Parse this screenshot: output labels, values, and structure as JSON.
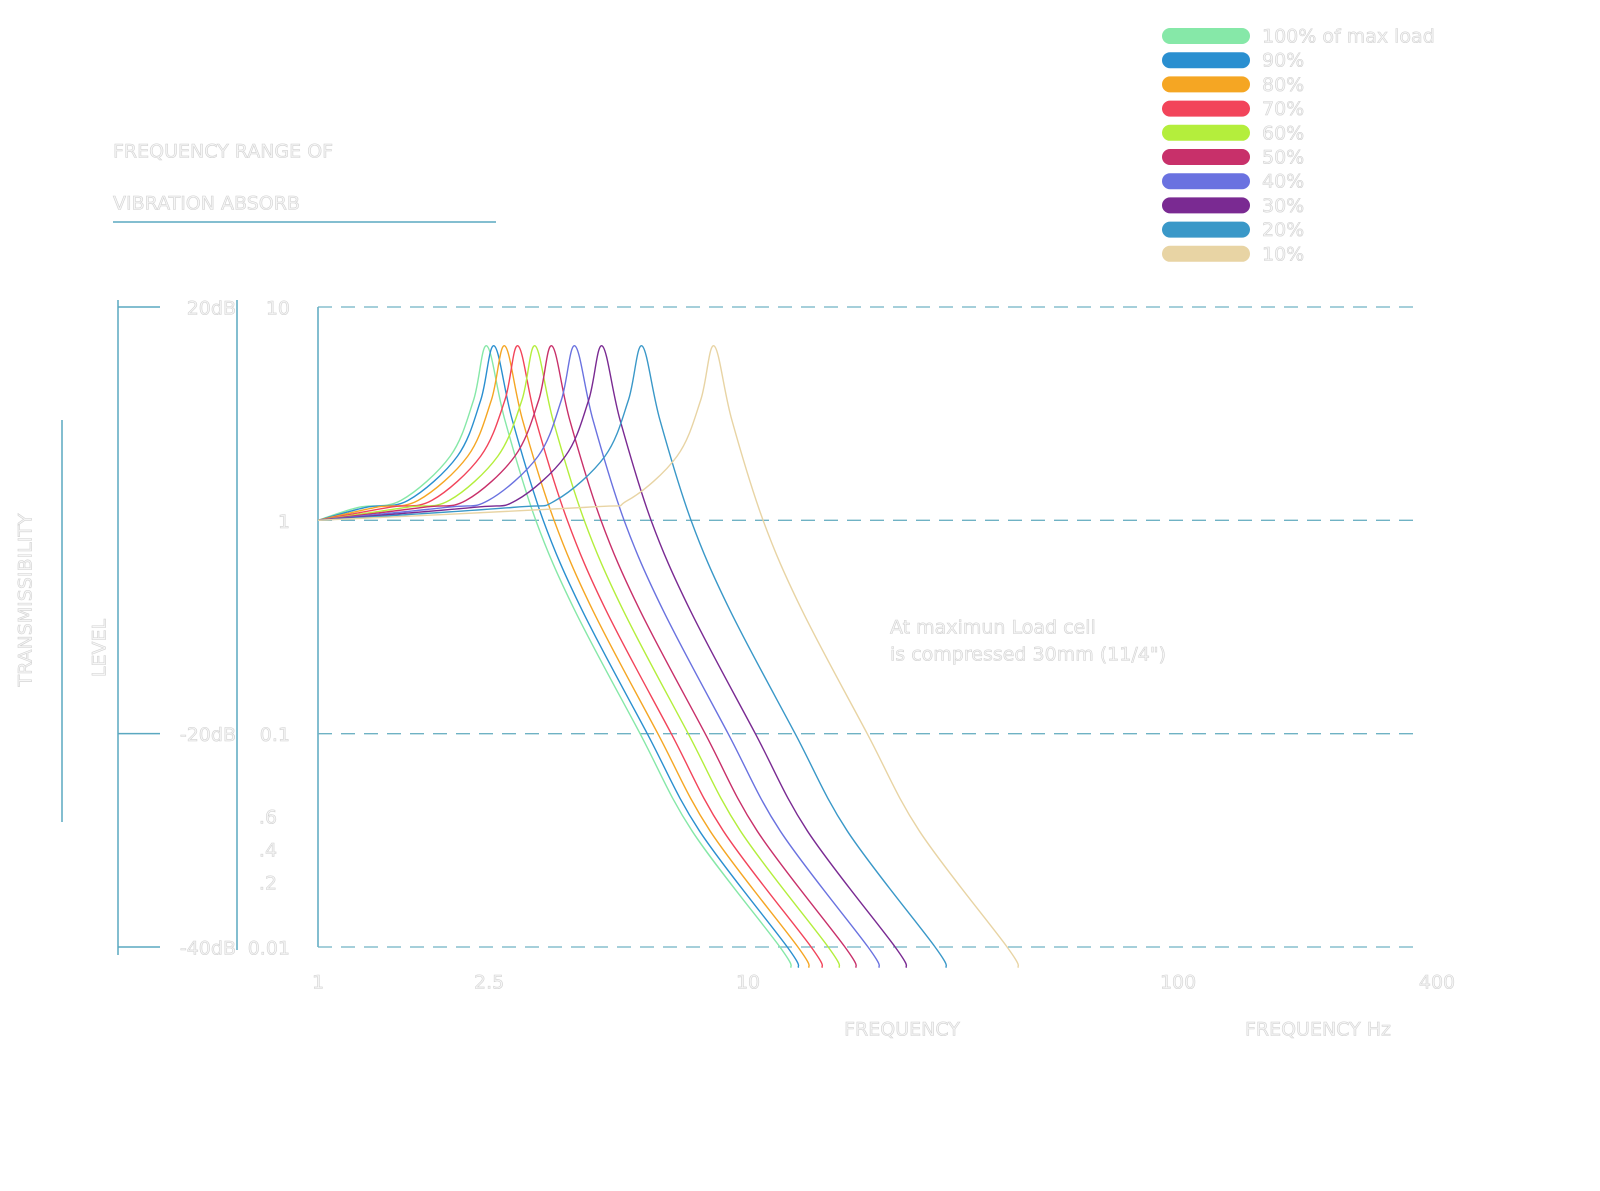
{
  "chart_data": {
    "type": "line",
    "title": "FREQUENCY RANGE OF",
    "subtitle": "VIBRATION ABSORB",
    "y_label": "TRANSMISSIBILITY",
    "y_label_2": "LEVEL",
    "x_label": "FREQUENCY",
    "x_label_2": "FREQUENCY Hz",
    "annotation": [
      "At maximun Load cell",
      "is compressed 30mm (11/4\")"
    ],
    "log_x": true,
    "log_y": true,
    "grid": true,
    "legend": "top-right",
    "xlim": [
      1,
      400
    ],
    "xticks": [
      1,
      2.5,
      10,
      100,
      400
    ],
    "ylim": [
      0.01,
      10
    ],
    "yticks": [
      0.01,
      0.1,
      1,
      10
    ],
    "extra_y_labels": [
      ".6",
      ".4",
      ".2"
    ],
    "y2lim": [
      -40,
      20
    ],
    "y2ticks": [
      {
        "value": 20,
        "label": "20dB"
      },
      {
        "value": -20,
        "label": "-20dB"
      },
      {
        "value": -40,
        "label": "-40dB"
      }
    ],
    "series": [
      {
        "name": "100% of max load",
        "color": "#86e8a8",
        "x": [
          1,
          1.24,
          1.56,
          2.03,
          2.3,
          2.47,
          2.72,
          3.21,
          3.95,
          5.61,
          7.41,
          11.86,
          12.6
        ],
        "values": [
          1,
          1.15,
          1.24,
          2.0,
          3.66,
          6.57,
          2.95,
          1,
          0.38,
          0.1,
          0.035,
          0.01,
          0.008
        ]
      },
      {
        "name": "90%",
        "color": "#2a8fd0",
        "x": [
          1,
          1.29,
          1.62,
          2.11,
          2.39,
          2.57,
          2.83,
          3.34,
          4.11,
          5.83,
          7.71,
          12.34,
          13.11
        ],
        "values": [
          1,
          1.15,
          1.24,
          2.0,
          3.66,
          6.57,
          2.95,
          1,
          0.38,
          0.1,
          0.035,
          0.01,
          0.008
        ]
      },
      {
        "name": "80%",
        "color": "#f5a623",
        "x": [
          1,
          1.36,
          1.71,
          2.23,
          2.53,
          2.72,
          2.99,
          3.54,
          4.35,
          6.17,
          8.16,
          13.06,
          13.87
        ],
        "values": [
          1,
          1.15,
          1.24,
          2.0,
          3.66,
          6.57,
          2.95,
          1,
          0.38,
          0.1,
          0.035,
          0.01,
          0.008
        ]
      },
      {
        "name": "70%",
        "color": "#f2445a",
        "x": [
          1,
          1.46,
          1.84,
          2.39,
          2.72,
          2.92,
          3.21,
          3.8,
          4.67,
          6.63,
          8.76,
          14.02,
          14.89
        ],
        "values": [
          1,
          1.15,
          1.24,
          2.0,
          3.66,
          6.57,
          2.95,
          1,
          0.38,
          0.1,
          0.035,
          0.01,
          0.008
        ]
      },
      {
        "name": "60%",
        "color": "#b4ee3c",
        "x": [
          1,
          1.6,
          2.02,
          2.62,
          2.98,
          3.2,
          3.52,
          4.16,
          5.12,
          7.26,
          9.6,
          15.36,
          16.32
        ],
        "values": [
          1,
          1.15,
          1.24,
          2.0,
          3.66,
          6.57,
          2.95,
          1,
          0.38,
          0.1,
          0.035,
          0.01,
          0.008
        ]
      },
      {
        "name": "50%",
        "color": "#c8306a",
        "x": [
          1,
          1.75,
          2.21,
          2.87,
          3.26,
          3.5,
          3.85,
          4.55,
          5.6,
          7.95,
          10.5,
          16.8,
          17.85
        ],
        "values": [
          1,
          1.15,
          1.24,
          2.0,
          3.66,
          6.57,
          2.95,
          1,
          0.38,
          0.1,
          0.035,
          0.01,
          0.008
        ]
      },
      {
        "name": "40%",
        "color": "#6a72e0",
        "x": [
          1,
          1.98,
          2.49,
          3.25,
          3.68,
          3.96,
          4.36,
          5.15,
          6.34,
          8.99,
          11.88,
          19.01,
          20.2
        ],
        "values": [
          1,
          1.15,
          1.24,
          2.0,
          3.66,
          6.57,
          2.95,
          1,
          0.38,
          0.1,
          0.035,
          0.01,
          0.008
        ]
      },
      {
        "name": "30%",
        "color": "#7a2a92",
        "x": [
          1,
          2.29,
          2.89,
          3.76,
          4.26,
          4.58,
          5.04,
          5.95,
          7.33,
          10.4,
          13.74,
          21.98,
          23.36
        ],
        "values": [
          1,
          1.15,
          1.24,
          2.0,
          3.66,
          6.57,
          2.95,
          1,
          0.38,
          0.1,
          0.035,
          0.01,
          0.008
        ]
      },
      {
        "name": "20%",
        "color": "#3a98c8",
        "x": [
          1,
          2.84,
          3.57,
          4.65,
          5.27,
          5.67,
          6.24,
          7.37,
          9.07,
          12.87,
          17.01,
          27.22,
          28.92
        ],
        "values": [
          1,
          1.15,
          1.24,
          2.0,
          3.66,
          6.57,
          2.95,
          1,
          0.38,
          0.1,
          0.035,
          0.01,
          0.008
        ]
      },
      {
        "name": "10%",
        "color": "#e8d4a4",
        "x": [
          1,
          4.17,
          5.25,
          6.84,
          7.76,
          8.34,
          9.17,
          10.84,
          13.34,
          18.93,
          25.02,
          40.03,
          42.53
        ],
        "values": [
          1,
          1.15,
          1.24,
          2.0,
          3.66,
          6.57,
          2.95,
          1,
          0.38,
          0.1,
          0.035,
          0.01,
          0.008
        ]
      }
    ]
  }
}
